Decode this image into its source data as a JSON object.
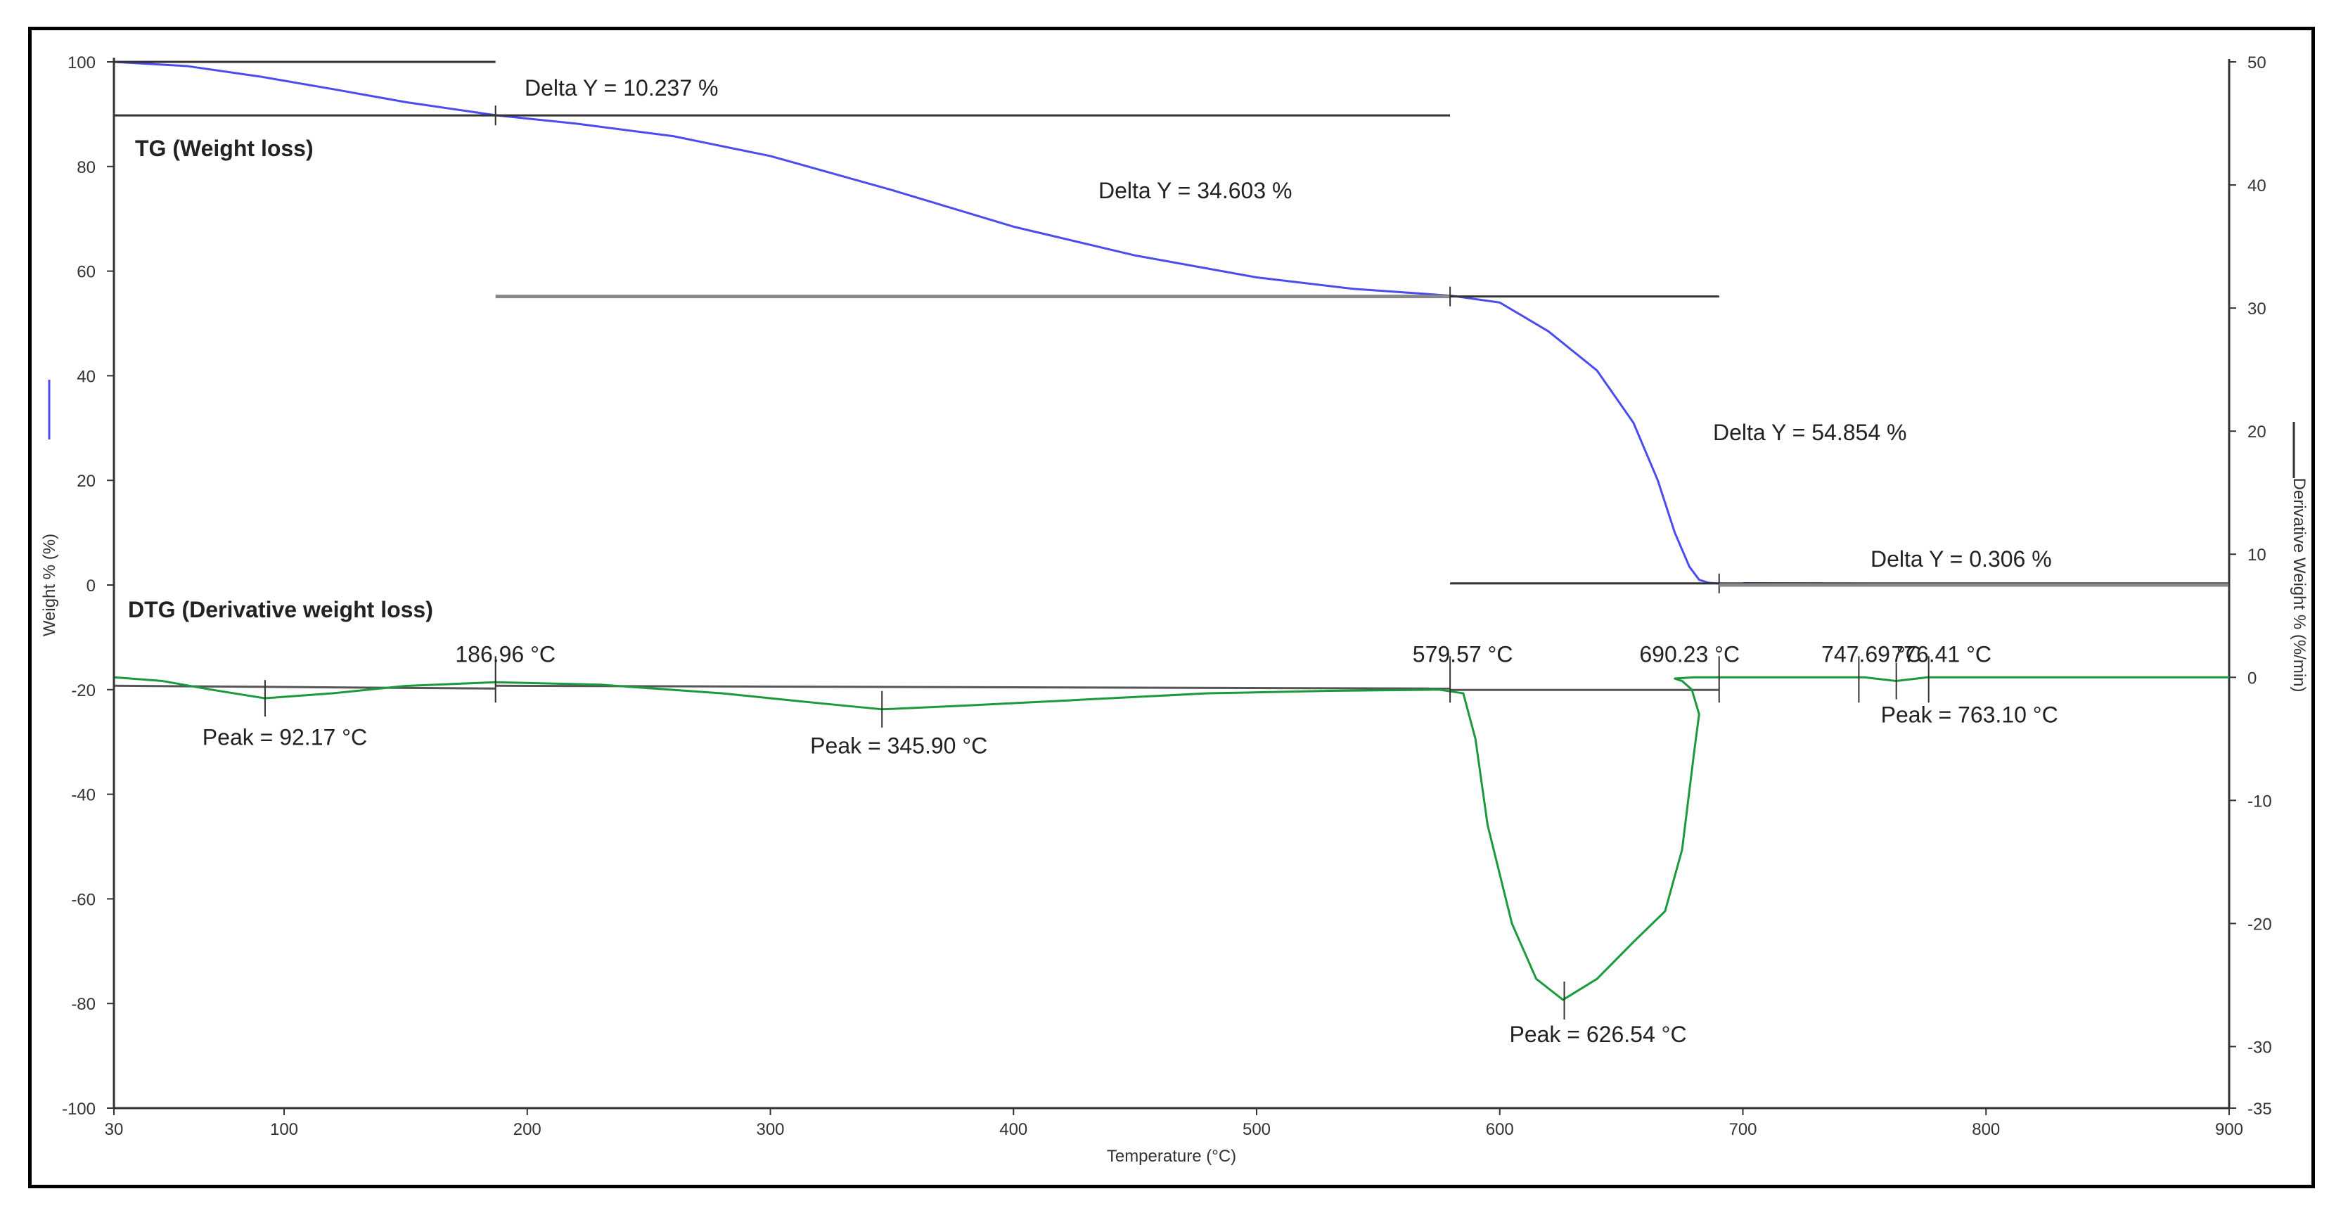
{
  "chart_data": {
    "type": "line",
    "xlabel": "Temperature (°C)",
    "ylabel_left": "Weight % (%)",
    "ylabel_right": "Derivative Weight % (%/min)",
    "xlim": [
      30,
      900
    ],
    "ylim_left": [
      -100,
      100
    ],
    "ylim_right": [
      -35,
      50
    ],
    "x_ticks": [
      30,
      100,
      200,
      300,
      400,
      500,
      600,
      700,
      800,
      900
    ],
    "y_left_ticks": [
      100,
      80,
      60,
      40,
      20,
      0,
      -20,
      -40,
      -60,
      -80,
      -100
    ],
    "y_right_ticks": [
      50,
      40,
      30,
      20,
      10,
      0,
      -10,
      -20,
      -30,
      -35
    ],
    "grid": false,
    "colors": {
      "tg": "#4a4cf0",
      "dtg": "#1a9a3a",
      "annotation": "#333333",
      "frame": "#000000"
    },
    "series": [
      {
        "name": "TG (Weight loss)",
        "axis": "left",
        "x": [
          30,
          60,
          90,
          120,
          150,
          187,
          220,
          260,
          300,
          350,
          400,
          450,
          500,
          540,
          580,
          600,
          620,
          640,
          655,
          665,
          672,
          678,
          682,
          686,
          690,
          700,
          750,
          800,
          850,
          900
        ],
        "y": [
          100,
          99.2,
          97.2,
          94.8,
          92.3,
          89.8,
          88.2,
          85.8,
          82.0,
          75.5,
          68.5,
          63.0,
          58.8,
          56.6,
          55.3,
          54.0,
          48.5,
          41.0,
          31.0,
          20.0,
          10.0,
          3.5,
          1.0,
          0.4,
          0.3,
          0.2,
          0.1,
          0.05,
          0.02,
          0.0
        ]
      },
      {
        "name": "DTG (Derivative weight loss)",
        "axis": "right",
        "x": [
          30,
          50,
          70,
          92,
          120,
          150,
          187,
          230,
          280,
          320,
          346,
          380,
          430,
          480,
          530,
          575,
          585,
          590,
          595,
          605,
          615,
          626,
          640,
          655,
          668,
          675,
          680,
          682,
          679,
          675,
          672,
          680,
          700,
          750,
          763,
          776,
          800,
          850,
          900
        ],
        "y": [
          0.0,
          -0.3,
          -1.0,
          -1.7,
          -1.3,
          -0.7,
          -0.4,
          -0.6,
          -1.3,
          -2.1,
          -2.6,
          -2.3,
          -1.8,
          -1.3,
          -1.1,
          -1.0,
          -1.3,
          -5.0,
          -12.0,
          -20.0,
          -24.5,
          -26.2,
          -24.5,
          -21.5,
          -19.0,
          -14.0,
          -6.0,
          -3.0,
          -1.0,
          -0.3,
          -0.1,
          0.0,
          0.0,
          0.0,
          -0.3,
          0.0,
          0.0,
          0.0,
          0.0
        ]
      }
    ],
    "annotations": {
      "tg_label": "TG (Weight loss)",
      "dtg_label": "DTG (Derivative weight loss)",
      "tg_steps": [
        {
          "text": "Delta Y = 10.237 %",
          "x_start": 30,
          "x_end": 186.96,
          "y_start": 100,
          "y_end": 89.763
        },
        {
          "text": "Delta Y = 34.603 %",
          "x_start": 186.96,
          "x_end": 579.57,
          "y_start": 89.763,
          "y_end": 55.16
        },
        {
          "text": "Delta Y = 54.854 %",
          "x_start": 579.57,
          "x_end": 690.23,
          "y_start": 55.16,
          "y_end": 0.306
        },
        {
          "text": "Delta Y = 0.306 %",
          "x_start": 690.23,
          "x_end": 900,
          "y_start": 0.306,
          "y_end": 0
        }
      ],
      "dtg_onsets": [
        {
          "text": "186.96 °C",
          "x": 186.96
        },
        {
          "text": "579.57 °C",
          "x": 579.57
        },
        {
          "text": "690.23 °C",
          "x": 690.23
        },
        {
          "text": "747.69 °C",
          "x": 747.69
        },
        {
          "text": "776.41 °C",
          "x": 776.41
        }
      ],
      "dtg_peaks": [
        {
          "text": "Peak = 92.17 °C",
          "x": 92.17,
          "y": -1.7
        },
        {
          "text": "Peak = 345.90 °C",
          "x": 345.9,
          "y": -2.6
        },
        {
          "text": "Peak = 626.54 °C",
          "x": 626.54,
          "y": -26.2
        },
        {
          "text": "Peak = 763.10 °C",
          "x": 763.1,
          "y": -0.3
        }
      ]
    }
  }
}
